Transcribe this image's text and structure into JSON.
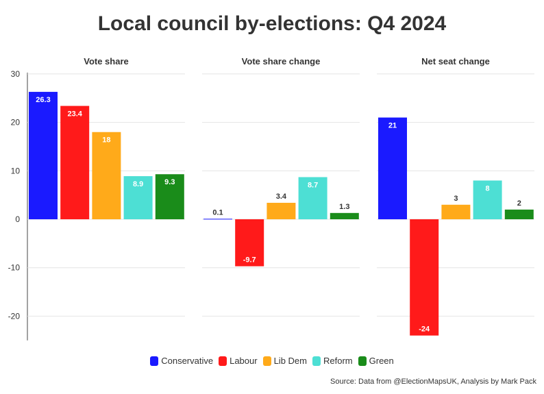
{
  "title": "Local council by-elections: Q4 2024",
  "caption": "Source: Data from @ElectionMapsUK, Analysis by Mark Pack",
  "chart_data": {
    "type": "bar",
    "categories": [
      "Conservative",
      "Labour",
      "Lib Dem",
      "Reform",
      "Green"
    ],
    "colors": [
      "#1a1aff",
      "#ff1a1a",
      "#ffaa1a",
      "#4ddfd4",
      "#1a8c1a"
    ],
    "ylim": [
      -25,
      30
    ],
    "yticks": [
      30,
      20,
      10,
      0,
      -10,
      -20
    ],
    "ytick_labels": [
      "30",
      "20",
      "10",
      "0",
      "-10",
      "-20"
    ],
    "grid": true,
    "legend_position": "bottom",
    "panels": [
      {
        "title": "Vote share",
        "values": [
          26.3,
          23.4,
          18,
          8.9,
          9.3
        ],
        "labels": [
          "26.3",
          "23.4",
          "18",
          "8.9",
          "9.3"
        ]
      },
      {
        "title": "Vote share change",
        "values": [
          0.1,
          -9.7,
          3.4,
          8.7,
          1.3
        ],
        "labels": [
          "0.1",
          "-9.7",
          "3.4",
          "8.7",
          "1.3"
        ]
      },
      {
        "title": "Net seat change",
        "values": [
          21,
          -24,
          3,
          8,
          2
        ],
        "labels": [
          "21",
          "-24",
          "3",
          "8",
          "2"
        ]
      }
    ]
  }
}
